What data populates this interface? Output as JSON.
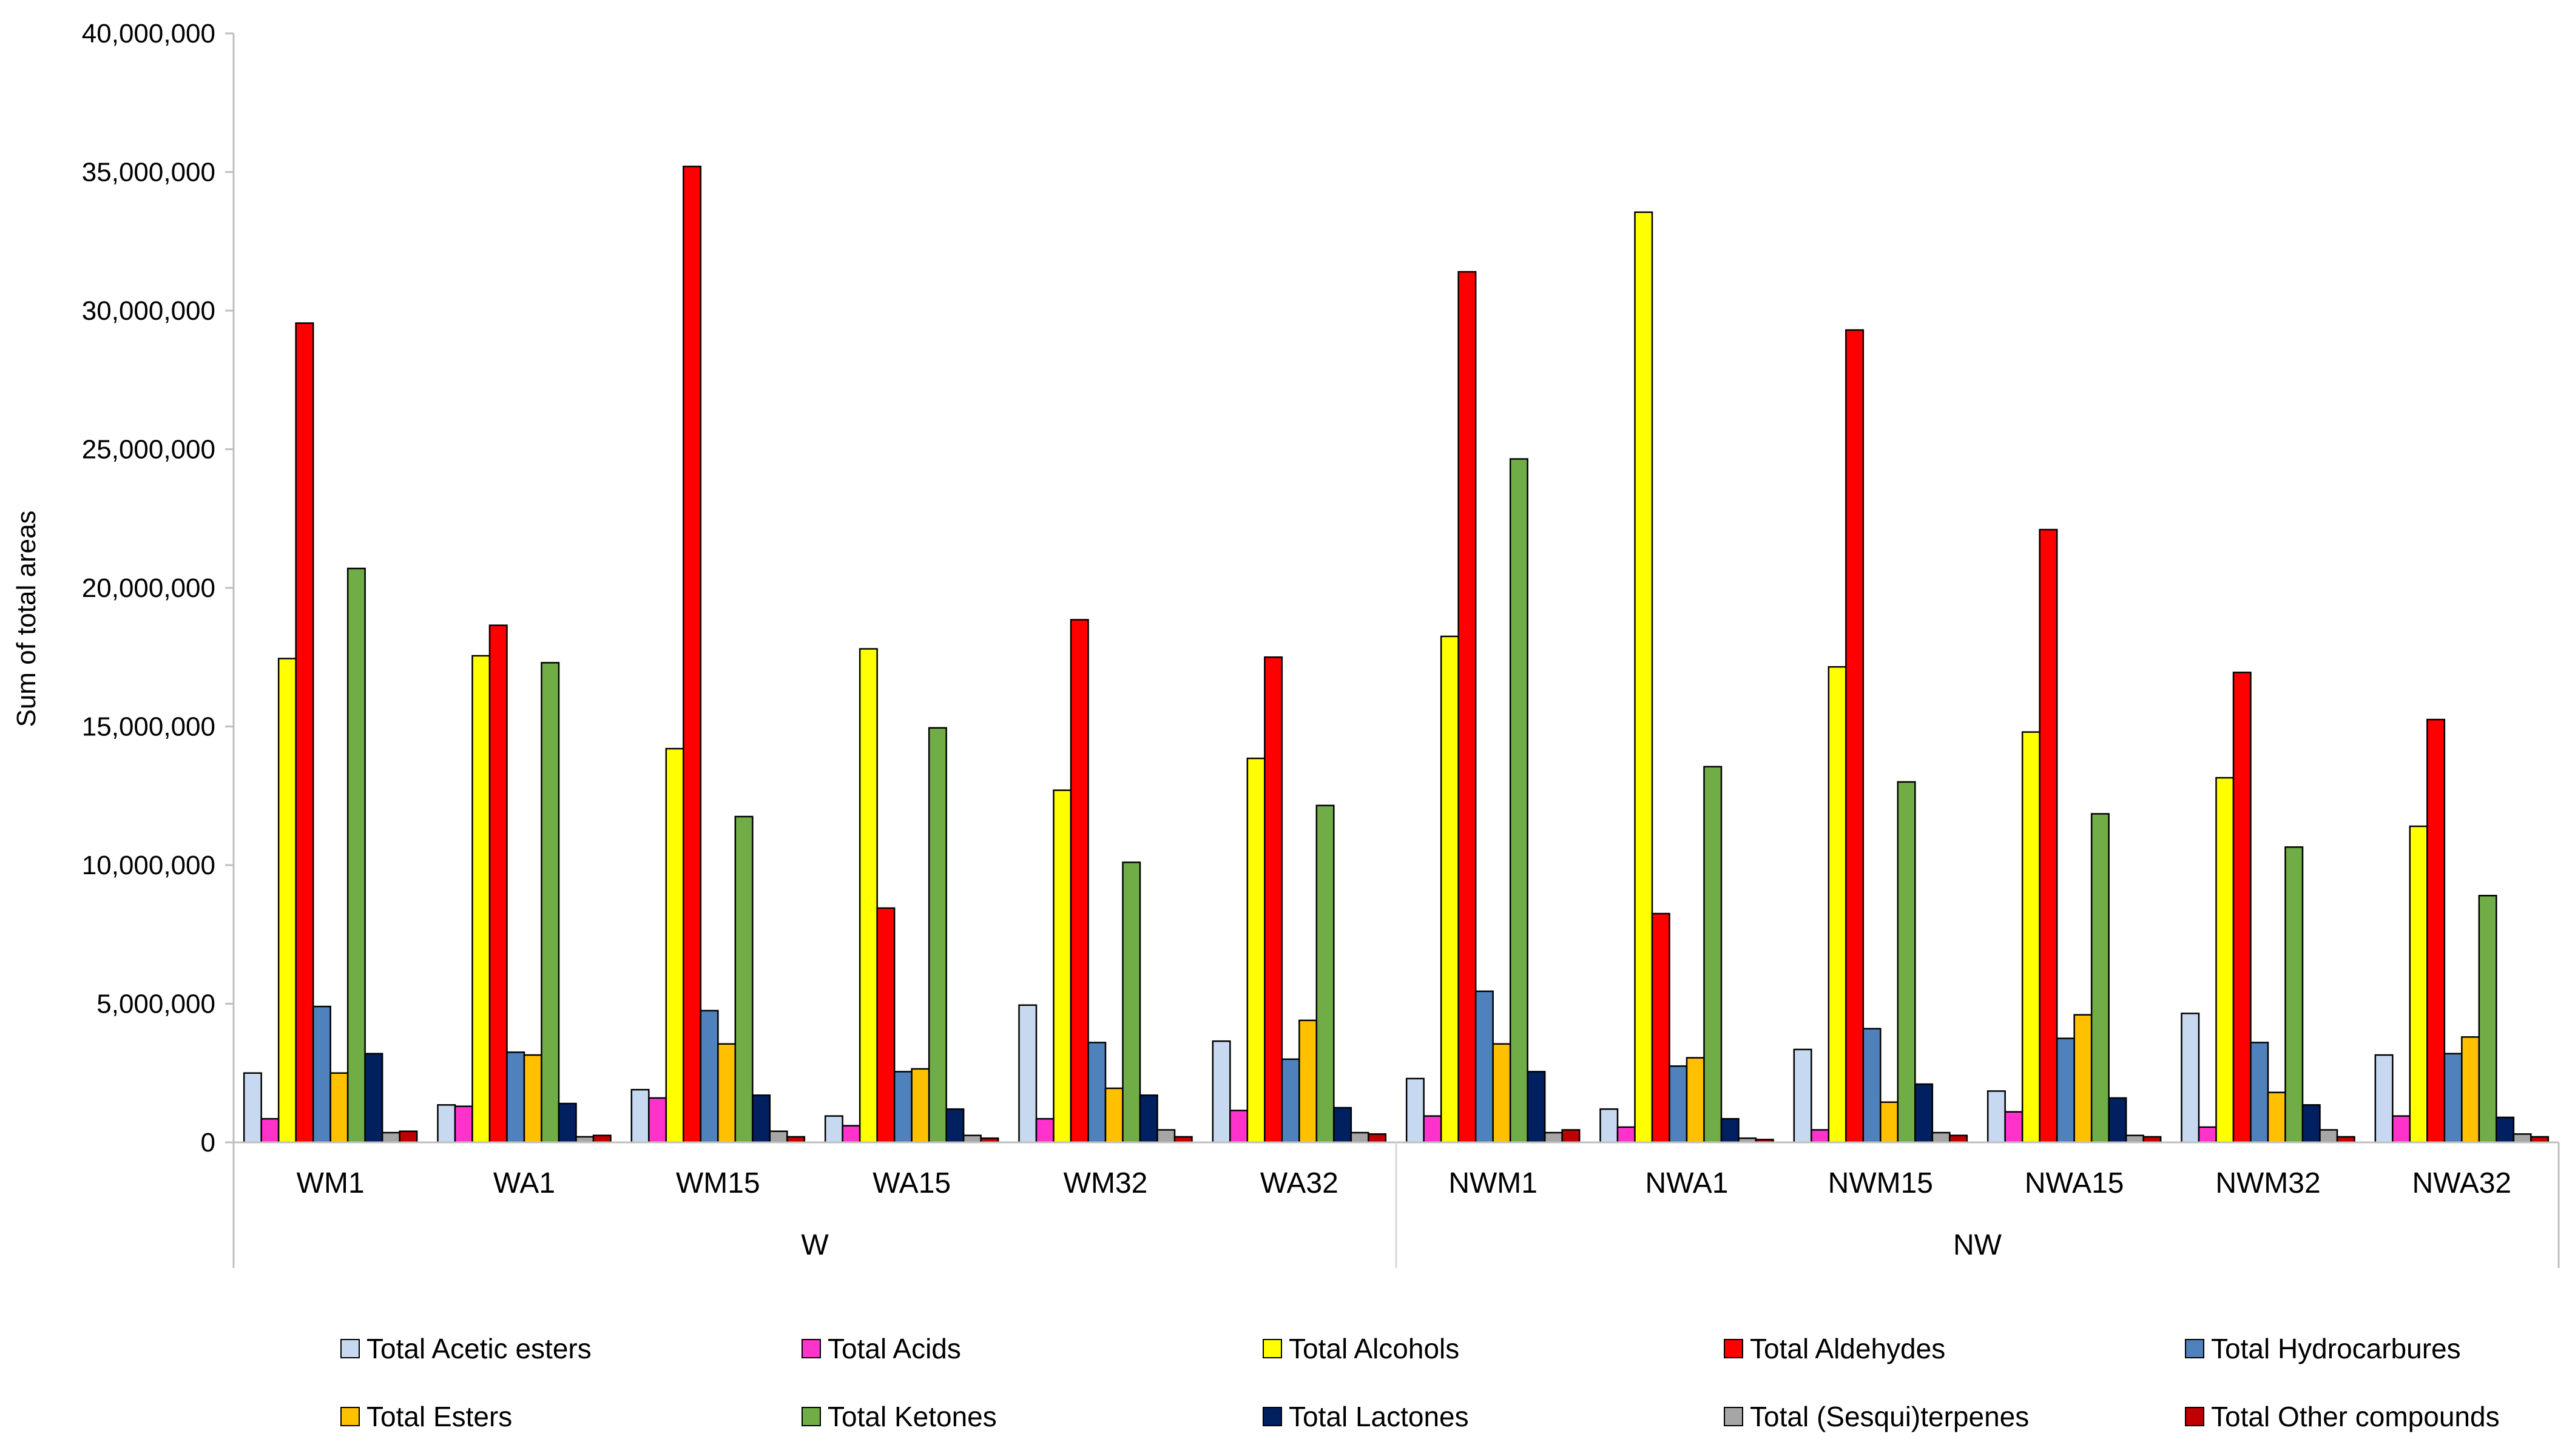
{
  "chart_data": {
    "type": "bar",
    "title": "",
    "xlabel": "",
    "ylabel": "Sum of total areas",
    "ylim": [
      0,
      40000000
    ],
    "yticks": [
      "0",
      "5,000,000",
      "10,000,000",
      "15,000,000",
      "20,000,000",
      "25,000,000",
      "30,000,000",
      "35,000,000",
      "40,000,000"
    ],
    "grid": false,
    "legend_position": "bottom",
    "categories": [
      "WM1",
      "WA1",
      "WM15",
      "WA15",
      "WM32",
      "WA32",
      "NWM1",
      "NWA1",
      "NWM15",
      "NWA15",
      "NWM32",
      "NWA32"
    ],
    "groups": [
      {
        "label": "W",
        "count": 6
      },
      {
        "label": "NW",
        "count": 6
      }
    ],
    "series": [
      {
        "name": "Total Acetic esters",
        "color": "#c6d9f1",
        "values": [
          2500000,
          1350000,
          1900000,
          950000,
          4950000,
          3650000,
          2300000,
          1200000,
          3350000,
          1850000,
          4650000,
          3150000
        ]
      },
      {
        "name": "Total Acids",
        "color": "#ff33cc",
        "values": [
          850000,
          1300000,
          1600000,
          600000,
          850000,
          1150000,
          950000,
          550000,
          450000,
          1100000,
          550000,
          950000
        ]
      },
      {
        "name": "Total Alcohols",
        "color": "#ffff00",
        "values": [
          17450000,
          17550000,
          14200000,
          17800000,
          12700000,
          13850000,
          18250000,
          33550000,
          17150000,
          14800000,
          13150000,
          11400000
        ]
      },
      {
        "name": "Total Aldehydes",
        "color": "#ff0000",
        "values": [
          29550000,
          18650000,
          35200000,
          8450000,
          18850000,
          17500000,
          31400000,
          8250000,
          29300000,
          22100000,
          16950000,
          15250000
        ]
      },
      {
        "name": "Total Hydrocarbures",
        "color": "#4f81bd",
        "values": [
          4900000,
          3250000,
          4750000,
          2550000,
          3600000,
          3000000,
          5450000,
          2750000,
          4100000,
          3750000,
          3600000,
          3200000
        ]
      },
      {
        "name": "Total Esters",
        "color": "#ffc000",
        "values": [
          2500000,
          3150000,
          3550000,
          2650000,
          1950000,
          4400000,
          3550000,
          3050000,
          1450000,
          4600000,
          1800000,
          3800000
        ]
      },
      {
        "name": "Total Ketones",
        "color": "#70ad47",
        "values": [
          20700000,
          17300000,
          11750000,
          14950000,
          10100000,
          12150000,
          24650000,
          13550000,
          13000000,
          11850000,
          10650000,
          8900000
        ]
      },
      {
        "name": "Total Lactones",
        "color": "#002060",
        "values": [
          3200000,
          1400000,
          1700000,
          1200000,
          1700000,
          1250000,
          2550000,
          850000,
          2100000,
          1600000,
          1350000,
          900000
        ]
      },
      {
        "name": "Total (Sesqui)terpenes",
        "color": "#a6a6a6",
        "values": [
          350000,
          200000,
          400000,
          250000,
          450000,
          350000,
          350000,
          150000,
          350000,
          250000,
          450000,
          300000
        ]
      },
      {
        "name": "Total Other compounds",
        "color": "#c00000",
        "values": [
          400000,
          250000,
          200000,
          150000,
          200000,
          300000,
          450000,
          100000,
          250000,
          200000,
          200000,
          200000
        ]
      }
    ]
  }
}
